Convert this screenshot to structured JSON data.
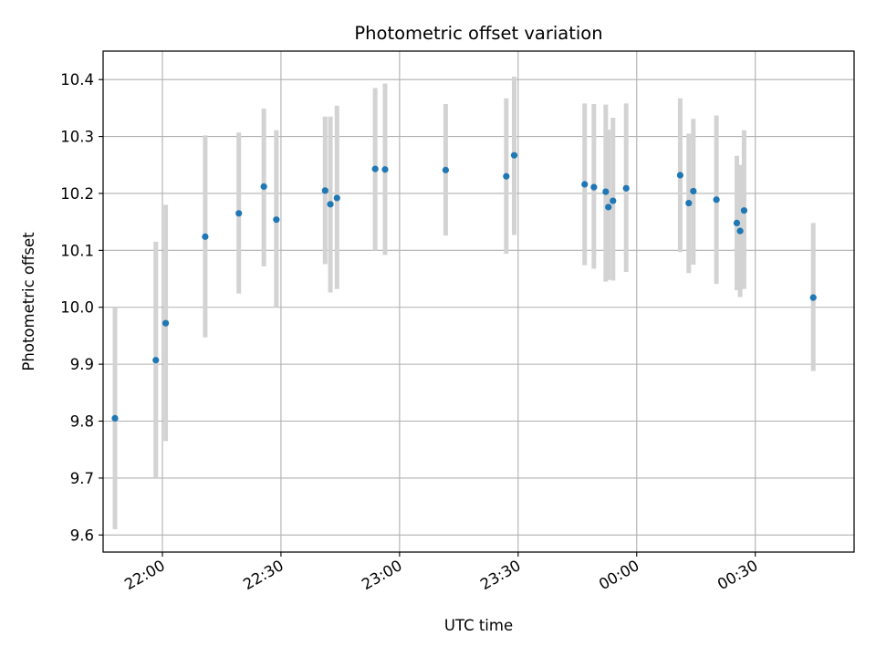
{
  "chart_data": {
    "type": "scatter",
    "title": "Photometric offset variation",
    "xlabel": "UTC time",
    "ylabel": "Photometric offset",
    "x_axis_type": "time",
    "xlim": [
      "21:45",
      "00:55"
    ],
    "ylim": [
      9.57,
      10.45
    ],
    "grid": true,
    "xticks": [
      "22:00",
      "22:30",
      "23:00",
      "23:30",
      "00:00",
      "00:30"
    ],
    "yticks": [
      "9.6",
      "9.7",
      "9.8",
      "9.9",
      "10.0",
      "10.1",
      "10.2",
      "10.3",
      "10.4"
    ],
    "colors": {
      "point": "#1f77b4",
      "errorbar": "#d3d3d3",
      "grid": "#b0b0b0"
    },
    "points": [
      {
        "x": "21:48:00",
        "y": 9.805,
        "yerr": [
          9.61,
          10.0
        ]
      },
      {
        "x": "21:58:20",
        "y": 9.907,
        "yerr": [
          9.7,
          10.115
        ]
      },
      {
        "x": "22:00:50",
        "y": 9.972,
        "yerr": [
          9.765,
          10.18
        ]
      },
      {
        "x": "22:10:50",
        "y": 10.124,
        "yerr": [
          9.947,
          10.302
        ]
      },
      {
        "x": "22:19:20",
        "y": 10.165,
        "yerr": [
          10.024,
          10.307
        ]
      },
      {
        "x": "22:25:40",
        "y": 10.212,
        "yerr": [
          10.072,
          10.349
        ]
      },
      {
        "x": "22:28:50",
        "y": 10.154,
        "yerr": [
          10.0,
          10.311
        ]
      },
      {
        "x": "22:41:10",
        "y": 10.205,
        "yerr": [
          10.076,
          10.335
        ]
      },
      {
        "x": "22:42:30",
        "y": 10.181,
        "yerr": [
          10.026,
          10.335
        ]
      },
      {
        "x": "22:44:10",
        "y": 10.192,
        "yerr": [
          10.032,
          10.354
        ]
      },
      {
        "x": "22:53:50",
        "y": 10.243,
        "yerr": [
          10.1,
          10.385
        ]
      },
      {
        "x": "22:56:20",
        "y": 10.242,
        "yerr": [
          10.092,
          10.393
        ]
      },
      {
        "x": "23:11:40",
        "y": 10.241,
        "yerr": [
          10.126,
          10.357
        ]
      },
      {
        "x": "23:27:00",
        "y": 10.23,
        "yerr": [
          10.094,
          10.367
        ]
      },
      {
        "x": "23:29:00",
        "y": 10.267,
        "yerr": [
          10.127,
          10.405
        ]
      },
      {
        "x": "23:46:50",
        "y": 10.216,
        "yerr": [
          10.074,
          10.358
        ]
      },
      {
        "x": "23:49:10",
        "y": 10.211,
        "yerr": [
          10.068,
          10.357
        ]
      },
      {
        "x": "23:52:10",
        "y": 10.203,
        "yerr": [
          10.045,
          10.356
        ]
      },
      {
        "x": "23:52:50",
        "y": 10.176,
        "yerr": [
          10.048,
          10.312
        ]
      },
      {
        "x": "23:54:00",
        "y": 10.187,
        "yerr": [
          10.047,
          10.333
        ]
      },
      {
        "x": "23:57:20",
        "y": 10.209,
        "yerr": [
          10.062,
          10.358
        ]
      },
      {
        "x": "00:11:00",
        "y": 10.232,
        "yerr": [
          10.097,
          10.367
        ]
      },
      {
        "x": "00:13:10",
        "y": 10.183,
        "yerr": [
          10.06,
          10.305
        ]
      },
      {
        "x": "00:14:20",
        "y": 10.204,
        "yerr": [
          10.075,
          10.331
        ]
      },
      {
        "x": "00:20:10",
        "y": 10.189,
        "yerr": [
          10.041,
          10.337
        ]
      },
      {
        "x": "00:25:20",
        "y": 10.148,
        "yerr": [
          10.03,
          10.266
        ]
      },
      {
        "x": "00:26:10",
        "y": 10.134,
        "yerr": [
          10.018,
          10.25
        ]
      },
      {
        "x": "00:27:10",
        "y": 10.17,
        "yerr": [
          10.032,
          10.311
        ]
      },
      {
        "x": "00:44:40",
        "y": 10.017,
        "yerr": [
          9.888,
          10.148
        ]
      }
    ]
  }
}
